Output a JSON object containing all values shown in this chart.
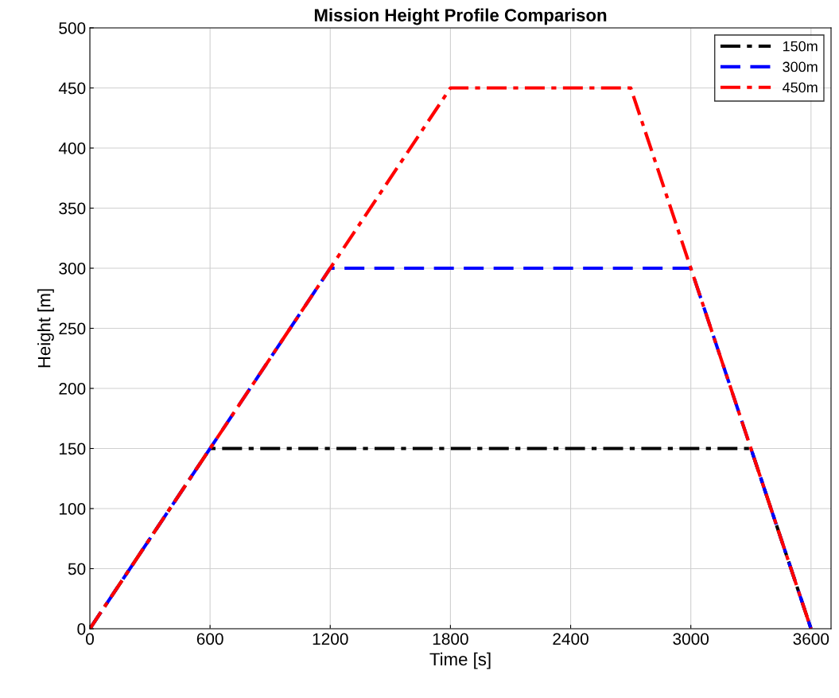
{
  "chart_data": {
    "type": "line",
    "title": "Mission Height Profile Comparison",
    "xlabel": "Time [s]",
    "ylabel": "Height [m]",
    "series": [
      {
        "name": "150m",
        "color": "#000000",
        "line_style": "dashdot",
        "x": [
          0,
          600,
          3300,
          3600
        ],
        "values": [
          0,
          150,
          150,
          0
        ]
      },
      {
        "name": "300m",
        "color": "#0000ff",
        "line_style": "dashed",
        "x": [
          0,
          1200,
          3000,
          3600
        ],
        "values": [
          0,
          300,
          300,
          0
        ]
      },
      {
        "name": "450m",
        "color": "#ff0000",
        "line_style": "dashdot",
        "x": [
          0,
          1800,
          2700,
          3600
        ],
        "values": [
          0,
          450,
          450,
          0
        ]
      }
    ],
    "xlim": [
      0,
      3700
    ],
    "xticks": [
      0,
      600,
      1200,
      1800,
      2400,
      3000,
      3600
    ],
    "ylim": [
      0,
      500
    ],
    "yticks": [
      0,
      50,
      100,
      150,
      200,
      250,
      300,
      350,
      400,
      450,
      500
    ],
    "grid": true,
    "legend": "top right",
    "marker": "none"
  }
}
